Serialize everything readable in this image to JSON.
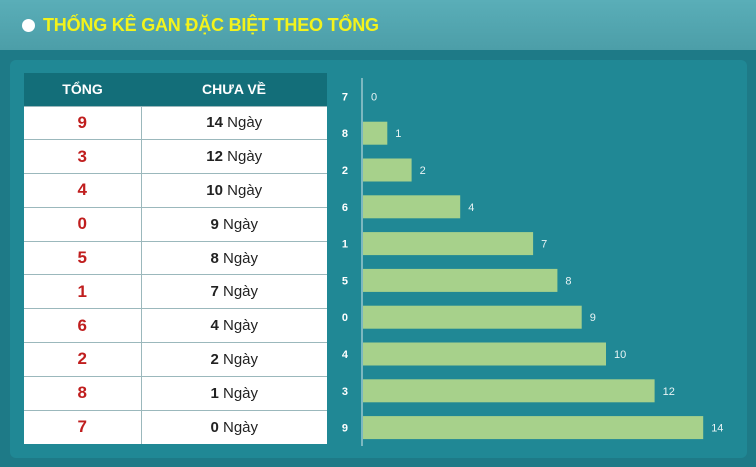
{
  "header": {
    "title": "THỐNG KÊ GAN ĐẶC BIỆT THEO TỔNG"
  },
  "table": {
    "col_sum": "TỔNG",
    "col_days": "CHƯA VỀ",
    "unit": "Ngày",
    "rows": [
      {
        "sum": "9",
        "days": "14"
      },
      {
        "sum": "3",
        "days": "12"
      },
      {
        "sum": "4",
        "days": "10"
      },
      {
        "sum": "0",
        "days": "9"
      },
      {
        "sum": "5",
        "days": "8"
      },
      {
        "sum": "1",
        "days": "7"
      },
      {
        "sum": "6",
        "days": "4"
      },
      {
        "sum": "2",
        "days": "2"
      },
      {
        "sum": "8",
        "days": "1"
      },
      {
        "sum": "7",
        "days": "0"
      }
    ]
  },
  "chart_data": {
    "type": "bar",
    "orientation": "horizontal",
    "categories": [
      "7",
      "8",
      "2",
      "6",
      "1",
      "5",
      "0",
      "4",
      "3",
      "9"
    ],
    "values": [
      0,
      1,
      2,
      4,
      7,
      8,
      9,
      10,
      12,
      14
    ],
    "xlim": [
      0,
      14
    ],
    "bar_color": "#a7d18b",
    "grid": false,
    "legend": "none"
  }
}
